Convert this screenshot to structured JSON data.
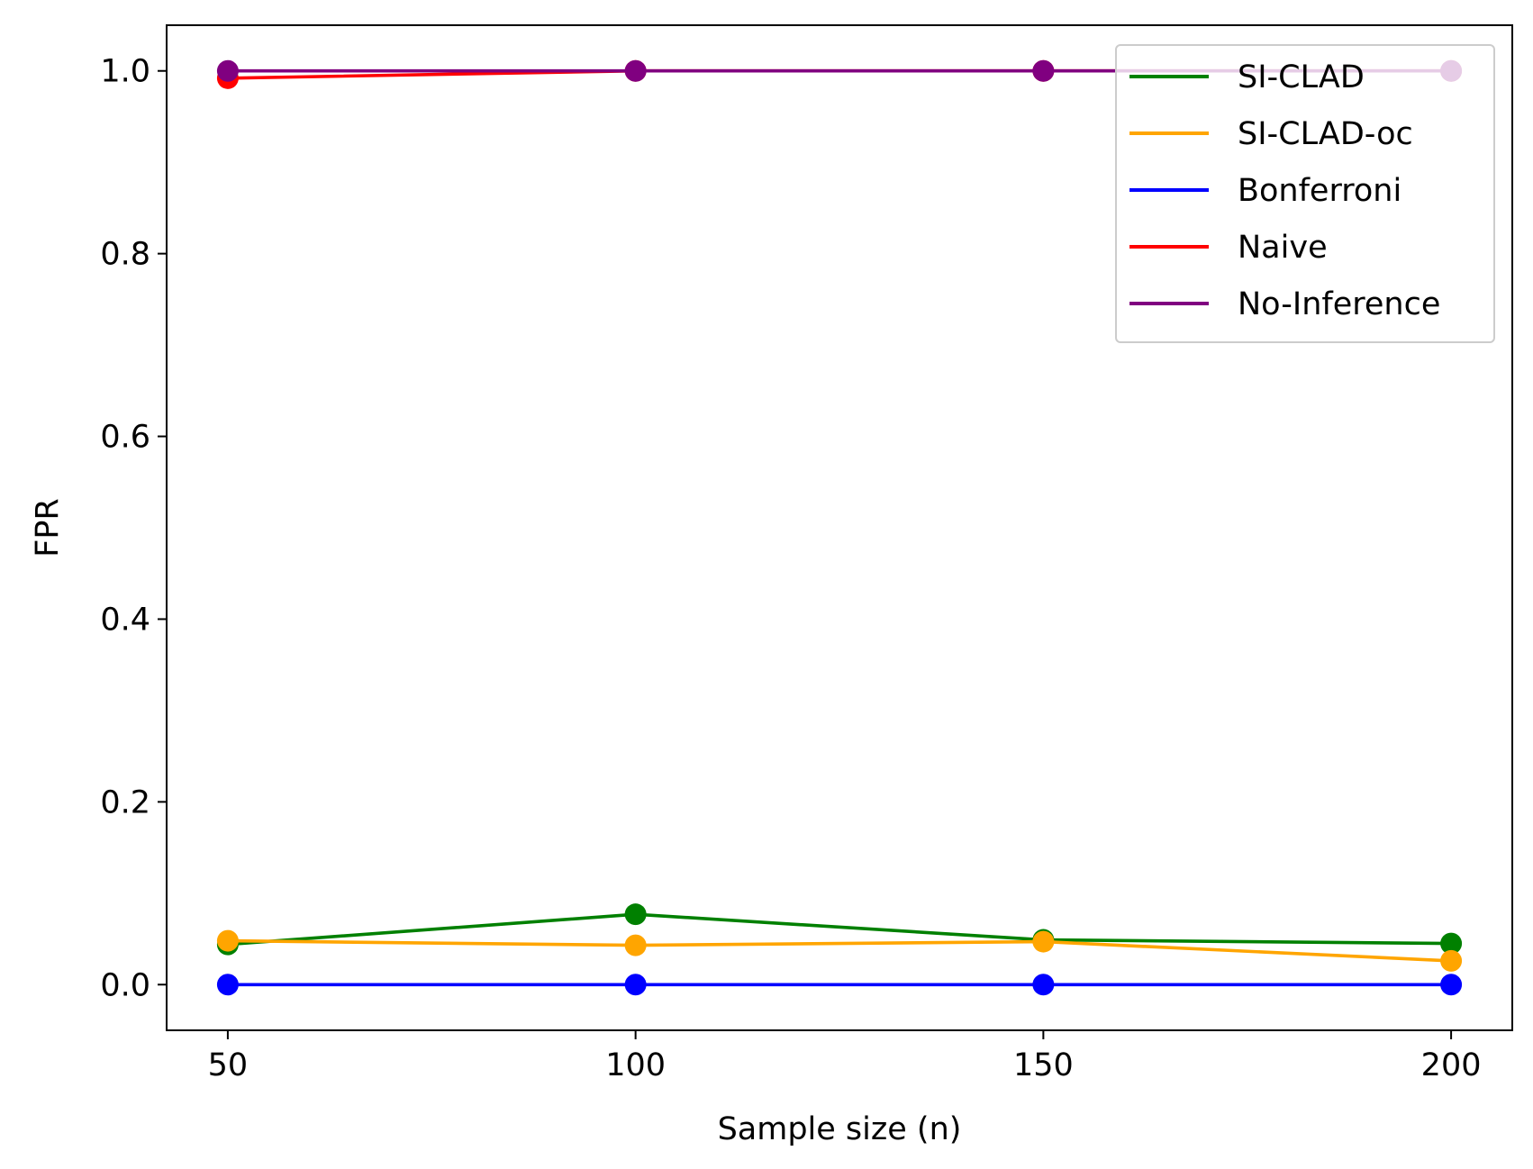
{
  "chart_data": {
    "type": "line",
    "title": "",
    "xlabel": "Sample size (n)",
    "ylabel": "FPR",
    "x": [
      50,
      100,
      150,
      200
    ],
    "xlim": [
      42.5,
      207.5
    ],
    "ylim": [
      -0.05,
      1.05
    ],
    "xticks": [
      50,
      100,
      150,
      200
    ],
    "xtick_labels": [
      "50",
      "100",
      "150",
      "200"
    ],
    "yticks": [
      0.0,
      0.2,
      0.4,
      0.6,
      0.8,
      1.0
    ],
    "ytick_labels": [
      "0.0",
      "0.2",
      "0.4",
      "0.6",
      "0.8",
      "1.0"
    ],
    "grid": false,
    "legend_position": "top-right",
    "series": [
      {
        "name": "SI-CLAD",
        "color": "#008000",
        "values": [
          0.044,
          0.077,
          0.049,
          0.045
        ]
      },
      {
        "name": "SI-CLAD-oc",
        "color": "#FFA500",
        "values": [
          0.048,
          0.043,
          0.047,
          0.026
        ]
      },
      {
        "name": "Bonferroni",
        "color": "#0000FF",
        "values": [
          0.0,
          0.0,
          0.0,
          0.0
        ]
      },
      {
        "name": "Naive",
        "color": "#FF0000",
        "values": [
          0.992,
          1.0,
          1.0,
          1.0
        ]
      },
      {
        "name": "No-Inference",
        "color": "#800080",
        "values": [
          1.0,
          1.0,
          1.0,
          1.0
        ]
      }
    ]
  }
}
